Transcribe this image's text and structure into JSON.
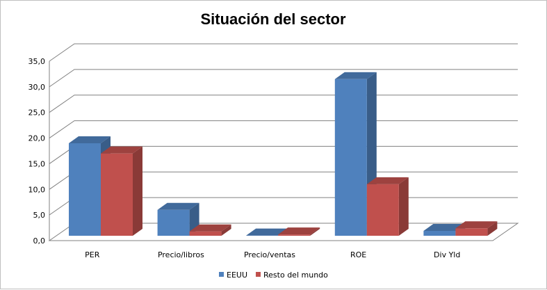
{
  "chart_data": {
    "type": "bar",
    "title": "Situación del sector",
    "categories": [
      "PER",
      "Precio/libros",
      "Precio/ventas",
      "ROE",
      "Div Yld"
    ],
    "series": [
      {
        "name": "EEUU",
        "values": [
          19.0,
          6.0,
          1.0,
          31.5,
          1.9
        ],
        "color": "#4f81bd"
      },
      {
        "name": "Resto del mundo",
        "values": [
          17.0,
          1.8,
          1.2,
          11.0,
          2.4
        ],
        "color": "#c0504d"
      }
    ],
    "y_ticks": [
      "0,0",
      "5,0",
      "10,0",
      "15,0",
      "20,0",
      "25,0",
      "30,0",
      "35,0"
    ],
    "ylim": [
      0,
      35
    ],
    "grid": true,
    "legend": "bottom",
    "style": "3d-clustered-column"
  }
}
